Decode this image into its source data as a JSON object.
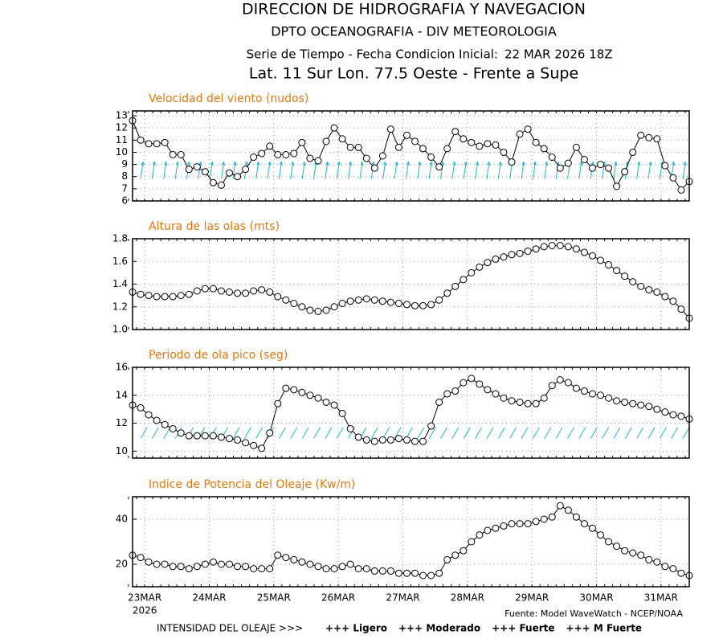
{
  "header": {
    "line1": "DIRECCION DE HIDROGRAFIA Y NAVEGACION",
    "line2": "DPTO OCEANOGRAFIA - DIV METEOROLOGIA",
    "line3": "Serie de Tiempo - Fecha Condicion Inicial:",
    "init_date": "22 MAR 2026 18Z",
    "init_color": "#1f3fff",
    "line4": "Lat. 11 Sur  Lon. 77.5 Oeste - Frente a Supe"
  },
  "chart_data": [
    {
      "type": "line",
      "title": "Velocidad del viento (nudos)",
      "color": "#000000",
      "grid": true,
      "ylim": [
        6,
        13.4
      ],
      "yticks": [
        6,
        7,
        8,
        9,
        10,
        11,
        12,
        13
      ],
      "values": [
        12.6,
        11.0,
        10.7,
        10.7,
        10.8,
        9.8,
        9.8,
        8.6,
        8.8,
        8.4,
        7.5,
        7.3,
        8.3,
        8.0,
        8.6,
        9.6,
        9.9,
        10.5,
        9.8,
        9.8,
        9.9,
        10.8,
        9.5,
        9.3,
        10.9,
        12.0,
        11.1,
        10.4,
        10.4,
        9.5,
        8.7,
        9.7,
        11.9,
        10.4,
        11.4,
        10.9,
        10.3,
        9.6,
        8.8,
        10.3,
        11.7,
        11.1,
        10.8,
        10.5,
        10.7,
        10.6,
        10.0,
        9.2,
        11.5,
        11.9,
        10.8,
        10.3,
        9.6,
        8.7,
        9.1,
        10.4,
        9.4,
        8.7,
        9.0,
        8.7,
        7.2,
        8.4,
        10.0,
        11.4,
        11.2,
        11.1,
        8.9,
        7.9,
        6.9,
        7.6
      ]
    },
    {
      "type": "line",
      "title": "Altura de las olas (mts)",
      "color": "#000000",
      "grid": true,
      "ylim": [
        1,
        1.8
      ],
      "yticks": [
        {
          "value": 1,
          "label": "1.0"
        },
        1.2,
        1.4,
        1.6,
        1.8
      ],
      "values": [
        1.33,
        1.31,
        1.3,
        1.29,
        1.29,
        1.29,
        1.3,
        1.31,
        1.34,
        1.36,
        1.36,
        1.34,
        1.33,
        1.32,
        1.32,
        1.34,
        1.35,
        1.33,
        1.29,
        1.26,
        1.23,
        1.2,
        1.17,
        1.16,
        1.17,
        1.2,
        1.23,
        1.25,
        1.26,
        1.27,
        1.26,
        1.25,
        1.24,
        1.23,
        1.22,
        1.21,
        1.21,
        1.22,
        1.26,
        1.32,
        1.38,
        1.44,
        1.5,
        1.55,
        1.59,
        1.62,
        1.64,
        1.66,
        1.67,
        1.69,
        1.71,
        1.73,
        1.74,
        1.74,
        1.73,
        1.71,
        1.68,
        1.65,
        1.61,
        1.57,
        1.52,
        1.47,
        1.42,
        1.38,
        1.35,
        1.33,
        1.29,
        1.25,
        1.18,
        1.1
      ]
    },
    {
      "type": "line",
      "title": "Periodo de ola pico (seg)",
      "color": "#000000",
      "grid": true,
      "ylim": [
        9.5,
        16
      ],
      "yticks": [
        10,
        12,
        14,
        16
      ],
      "values": [
        13.3,
        13.1,
        12.6,
        12.2,
        11.9,
        11.6,
        11.3,
        11.1,
        11.1,
        11.1,
        11.1,
        11.0,
        10.9,
        10.8,
        10.6,
        10.4,
        10.2,
        11.3,
        13.4,
        14.5,
        14.4,
        14.2,
        14.0,
        13.8,
        13.5,
        13.3,
        12.7,
        11.6,
        11.0,
        10.8,
        10.7,
        10.8,
        10.8,
        10.9,
        10.8,
        10.7,
        10.7,
        11.8,
        13.5,
        14.1,
        14.3,
        14.9,
        15.2,
        14.8,
        14.4,
        14.1,
        13.8,
        13.6,
        13.5,
        13.4,
        13.4,
        13.8,
        14.7,
        15.1,
        14.9,
        14.5,
        14.3,
        14.1,
        14.0,
        13.8,
        13.6,
        13.5,
        13.4,
        13.3,
        13.2,
        13.0,
        12.8,
        12.6,
        12.5,
        12.3
      ]
    },
    {
      "type": "line",
      "title": "Indice de Potencia del Oleaje (Kw/m)",
      "color": "#000000",
      "grid": true,
      "ylim": [
        10,
        50
      ],
      "yticks": [
        20,
        40
      ],
      "categories": [
        null,
        null,
        "23MAR",
        null,
        null,
        null,
        null,
        null,
        null,
        null,
        "24MAR",
        null,
        null,
        null,
        null,
        null,
        null,
        null,
        "25MAR",
        null,
        null,
        null,
        null,
        null,
        null,
        null,
        "26MAR",
        null,
        null,
        null,
        null,
        null,
        null,
        null,
        "27MAR",
        null,
        null,
        null,
        null,
        null,
        null,
        null,
        "28MAR",
        null,
        null,
        null,
        null,
        null,
        null,
        null,
        "29MAR",
        null,
        null,
        null,
        null,
        null,
        null,
        null,
        "30MAR",
        null,
        null,
        null,
        null,
        null,
        null,
        null,
        "31MAR",
        null,
        null,
        null
      ],
      "year": "2026",
      "values": [
        24,
        23,
        21,
        20,
        20,
        19,
        19,
        18,
        19,
        20,
        21,
        20,
        20,
        19,
        19,
        18,
        18,
        18,
        24,
        23,
        22,
        21,
        20,
        19,
        18,
        18,
        19,
        20,
        18,
        18,
        17,
        17,
        17,
        16,
        16,
        16,
        15,
        15,
        16,
        22,
        24,
        26,
        30,
        33,
        35,
        36,
        37,
        38,
        38,
        38,
        39,
        40,
        41,
        46,
        44,
        41,
        38,
        36,
        33,
        30,
        28,
        26,
        25,
        24,
        22,
        21,
        19,
        18,
        16,
        15
      ]
    }
  ],
  "footer": {
    "source": "Fuente: Model WaveWatch - NCEP/NOAA",
    "intensity": "INTENSIDAD DEL OLEAJE >>>",
    "legend": [
      {
        "text": "+++ Ligero",
        "color": "#1e90ff"
      },
      {
        "text": "+++ Moderado",
        "color": "#00c080"
      },
      {
        "text": "+++ Fuerte",
        "color": "#e8d000"
      },
      {
        "text": "+++ M Fuerte",
        "color": "#ff2020"
      }
    ]
  }
}
